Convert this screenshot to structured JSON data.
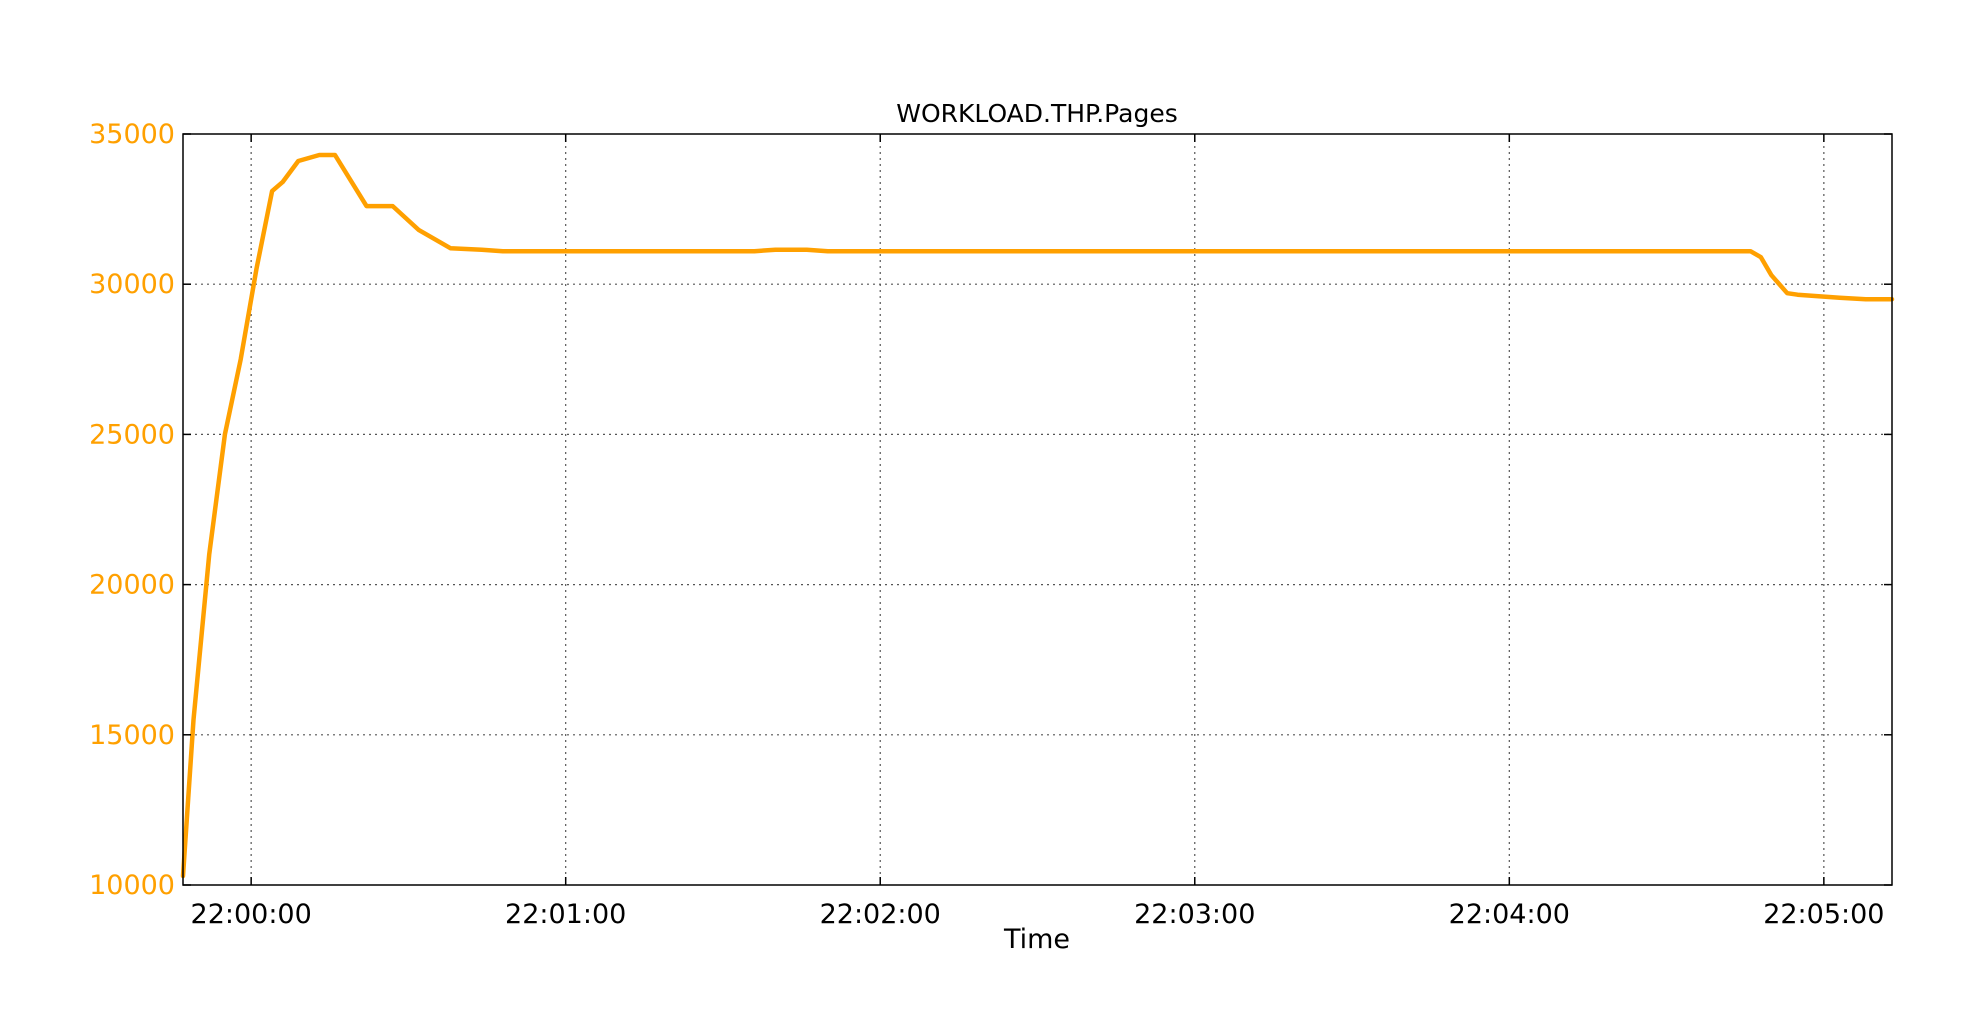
{
  "colors": {
    "series": "#FFA000",
    "frame": "#000000",
    "grid": "#555555",
    "text": "#000000",
    "background": "#FFFFFF"
  },
  "chart_data": {
    "type": "line",
    "title": "WORKLOAD.THP.Pages",
    "xlabel": "Time",
    "ylabel": "",
    "grid": true,
    "xlim": [
      "21:59:47",
      "22:05:13"
    ],
    "ylim": [
      10000,
      35000
    ],
    "x_ticks": [
      "22:00:00",
      "22:01:00",
      "22:02:00",
      "22:03:00",
      "22:04:00",
      "22:05:00"
    ],
    "y_ticks": [
      10000,
      15000,
      20000,
      25000,
      30000,
      35000
    ],
    "series": [
      {
        "x": [
          "21:59:47",
          "21:59:49",
          "21:59:52",
          "21:59:55",
          "21:59:58",
          "22:00:01",
          "22:00:04",
          "22:00:06",
          "22:00:09",
          "22:00:13",
          "22:00:16",
          "22:00:22",
          "22:00:27",
          "22:00:32",
          "22:00:38",
          "22:00:44",
          "22:00:48",
          "22:00:55",
          "22:01:00",
          "22:01:10",
          "22:01:20",
          "22:01:30",
          "22:01:36",
          "22:01:40",
          "22:01:46",
          "22:01:50",
          "22:01:55",
          "22:02:00",
          "22:02:30",
          "22:03:00",
          "22:03:30",
          "22:04:00",
          "22:04:30",
          "22:04:46",
          "22:04:48",
          "22:04:50",
          "22:04:53",
          "22:04:55",
          "22:04:59",
          "22:05:03",
          "22:05:08",
          "22:05:13"
        ],
        "y": [
          10300,
          15500,
          21000,
          25000,
          27500,
          30500,
          33100,
          33400,
          34100,
          34300,
          34300,
          32600,
          32600,
          31800,
          31200,
          31150,
          31100,
          31100,
          31100,
          31100,
          31100,
          31100,
          31100,
          31150,
          31150,
          31100,
          31100,
          31100,
          31100,
          31100,
          31100,
          31100,
          31100,
          31100,
          30900,
          30300,
          29700,
          29650,
          29600,
          29550,
          29500,
          29500
        ]
      }
    ]
  }
}
